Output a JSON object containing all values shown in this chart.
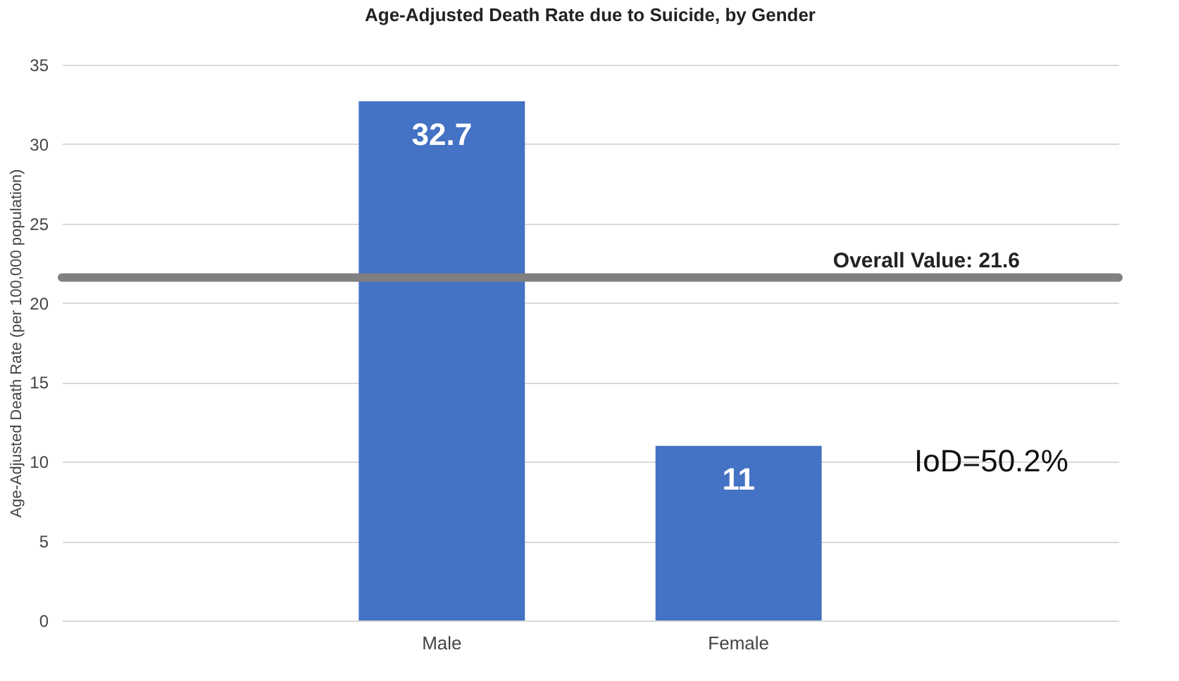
{
  "chart_data": {
    "type": "bar",
    "title": "Age-Adjusted Death Rate due to Suicide, by Gender",
    "ylabel": "Age-Adjusted Death Rate (per 100,000 population)",
    "categories": [
      "Male",
      "Female"
    ],
    "values": [
      32.7,
      11
    ],
    "color": "#4472c4",
    "ylim": [
      0,
      35
    ],
    "yticks": [
      0,
      5,
      10,
      15,
      20,
      25,
      30,
      35
    ],
    "grid": "y",
    "data_labels": true,
    "ref_lines": [
      {
        "axis": "y",
        "value": 21.6,
        "label": "Overall Value: 21.6",
        "color": "#808080"
      }
    ],
    "annotations": [
      "IoD=50.2%"
    ]
  }
}
